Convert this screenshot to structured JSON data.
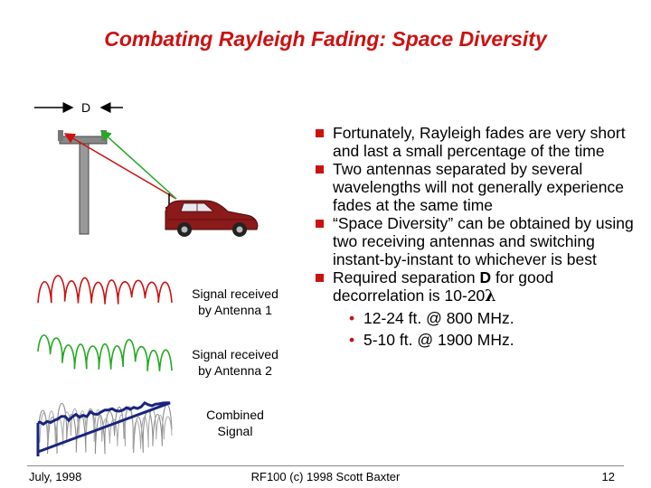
{
  "slide": {
    "title": "Combating Rayleigh Fading: Space Diversity"
  },
  "diagram": {
    "d_label": "D",
    "captions": {
      "antenna1": [
        "Signal received",
        "by Antenna 1"
      ],
      "antenna2": [
        "Signal received",
        "by Antenna 2"
      ],
      "combined": [
        "Combined",
        "Signal"
      ]
    },
    "colors": {
      "red": "#cc1111",
      "green": "#22aa22",
      "navy": "#1a237e",
      "car": "#8b1a1a"
    }
  },
  "bullets": [
    {
      "text": "Fortunately, Rayleigh fades are very short and last a small percentage of the time"
    },
    {
      "text": "Two antennas separated by several wavelengths will not generally experience fades at the same time"
    },
    {
      "text": "“Space Diversity” can be obtained by using two receiving antennas and switching instant-by-instant to whichever is best"
    },
    {
      "pre": "Required separation ",
      "bold": "D",
      "post": " for good decorrelation is 10-20",
      "symbol": "λ"
    }
  ],
  "sub_bullets": [
    "12-24 ft. @ 800 MHz.",
    "5-10 ft. @ 1900 MHz."
  ],
  "footer": {
    "date": "July, 1998",
    "credit": "RF100 (c) 1998 Scott Baxter",
    "page": "12"
  }
}
